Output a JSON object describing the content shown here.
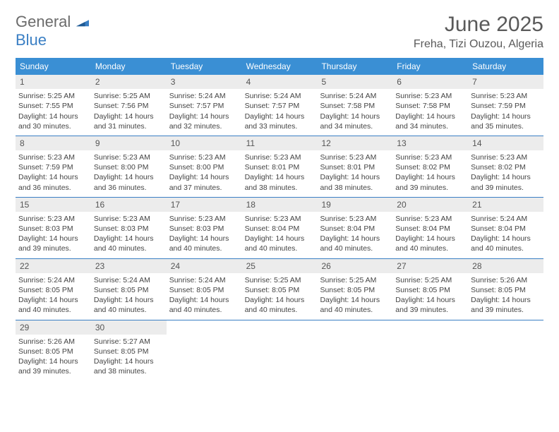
{
  "logo": {
    "line1": "General",
    "line2": "Blue"
  },
  "title": "June 2025",
  "location": "Freha, Tizi Ouzou, Algeria",
  "colors": {
    "header_bg": "#3a8fd4",
    "header_text": "#ffffff",
    "week_border": "#3a7fc4",
    "daynum_bg": "#ececec",
    "text": "#444444",
    "title_text": "#5a5a5a"
  },
  "dow": [
    "Sunday",
    "Monday",
    "Tuesday",
    "Wednesday",
    "Thursday",
    "Friday",
    "Saturday"
  ],
  "days": [
    {
      "n": 1,
      "sr": "5:25 AM",
      "ss": "7:55 PM",
      "dl": "14 hours and 30 minutes."
    },
    {
      "n": 2,
      "sr": "5:25 AM",
      "ss": "7:56 PM",
      "dl": "14 hours and 31 minutes."
    },
    {
      "n": 3,
      "sr": "5:24 AM",
      "ss": "7:57 PM",
      "dl": "14 hours and 32 minutes."
    },
    {
      "n": 4,
      "sr": "5:24 AM",
      "ss": "7:57 PM",
      "dl": "14 hours and 33 minutes."
    },
    {
      "n": 5,
      "sr": "5:24 AM",
      "ss": "7:58 PM",
      "dl": "14 hours and 34 minutes."
    },
    {
      "n": 6,
      "sr": "5:23 AM",
      "ss": "7:58 PM",
      "dl": "14 hours and 34 minutes."
    },
    {
      "n": 7,
      "sr": "5:23 AM",
      "ss": "7:59 PM",
      "dl": "14 hours and 35 minutes."
    },
    {
      "n": 8,
      "sr": "5:23 AM",
      "ss": "7:59 PM",
      "dl": "14 hours and 36 minutes."
    },
    {
      "n": 9,
      "sr": "5:23 AM",
      "ss": "8:00 PM",
      "dl": "14 hours and 36 minutes."
    },
    {
      "n": 10,
      "sr": "5:23 AM",
      "ss": "8:00 PM",
      "dl": "14 hours and 37 minutes."
    },
    {
      "n": 11,
      "sr": "5:23 AM",
      "ss": "8:01 PM",
      "dl": "14 hours and 38 minutes."
    },
    {
      "n": 12,
      "sr": "5:23 AM",
      "ss": "8:01 PM",
      "dl": "14 hours and 38 minutes."
    },
    {
      "n": 13,
      "sr": "5:23 AM",
      "ss": "8:02 PM",
      "dl": "14 hours and 39 minutes."
    },
    {
      "n": 14,
      "sr": "5:23 AM",
      "ss": "8:02 PM",
      "dl": "14 hours and 39 minutes."
    },
    {
      "n": 15,
      "sr": "5:23 AM",
      "ss": "8:03 PM",
      "dl": "14 hours and 39 minutes."
    },
    {
      "n": 16,
      "sr": "5:23 AM",
      "ss": "8:03 PM",
      "dl": "14 hours and 40 minutes."
    },
    {
      "n": 17,
      "sr": "5:23 AM",
      "ss": "8:03 PM",
      "dl": "14 hours and 40 minutes."
    },
    {
      "n": 18,
      "sr": "5:23 AM",
      "ss": "8:04 PM",
      "dl": "14 hours and 40 minutes."
    },
    {
      "n": 19,
      "sr": "5:23 AM",
      "ss": "8:04 PM",
      "dl": "14 hours and 40 minutes."
    },
    {
      "n": 20,
      "sr": "5:23 AM",
      "ss": "8:04 PM",
      "dl": "14 hours and 40 minutes."
    },
    {
      "n": 21,
      "sr": "5:24 AM",
      "ss": "8:04 PM",
      "dl": "14 hours and 40 minutes."
    },
    {
      "n": 22,
      "sr": "5:24 AM",
      "ss": "8:05 PM",
      "dl": "14 hours and 40 minutes."
    },
    {
      "n": 23,
      "sr": "5:24 AM",
      "ss": "8:05 PM",
      "dl": "14 hours and 40 minutes."
    },
    {
      "n": 24,
      "sr": "5:24 AM",
      "ss": "8:05 PM",
      "dl": "14 hours and 40 minutes."
    },
    {
      "n": 25,
      "sr": "5:25 AM",
      "ss": "8:05 PM",
      "dl": "14 hours and 40 minutes."
    },
    {
      "n": 26,
      "sr": "5:25 AM",
      "ss": "8:05 PM",
      "dl": "14 hours and 40 minutes."
    },
    {
      "n": 27,
      "sr": "5:25 AM",
      "ss": "8:05 PM",
      "dl": "14 hours and 39 minutes."
    },
    {
      "n": 28,
      "sr": "5:26 AM",
      "ss": "8:05 PM",
      "dl": "14 hours and 39 minutes."
    },
    {
      "n": 29,
      "sr": "5:26 AM",
      "ss": "8:05 PM",
      "dl": "14 hours and 39 minutes."
    },
    {
      "n": 30,
      "sr": "5:27 AM",
      "ss": "8:05 PM",
      "dl": "14 hours and 38 minutes."
    }
  ],
  "labels": {
    "sunrise": "Sunrise: ",
    "sunset": "Sunset: ",
    "daylight": "Daylight: "
  },
  "first_dow_index": 0,
  "trailing_empty": 5
}
